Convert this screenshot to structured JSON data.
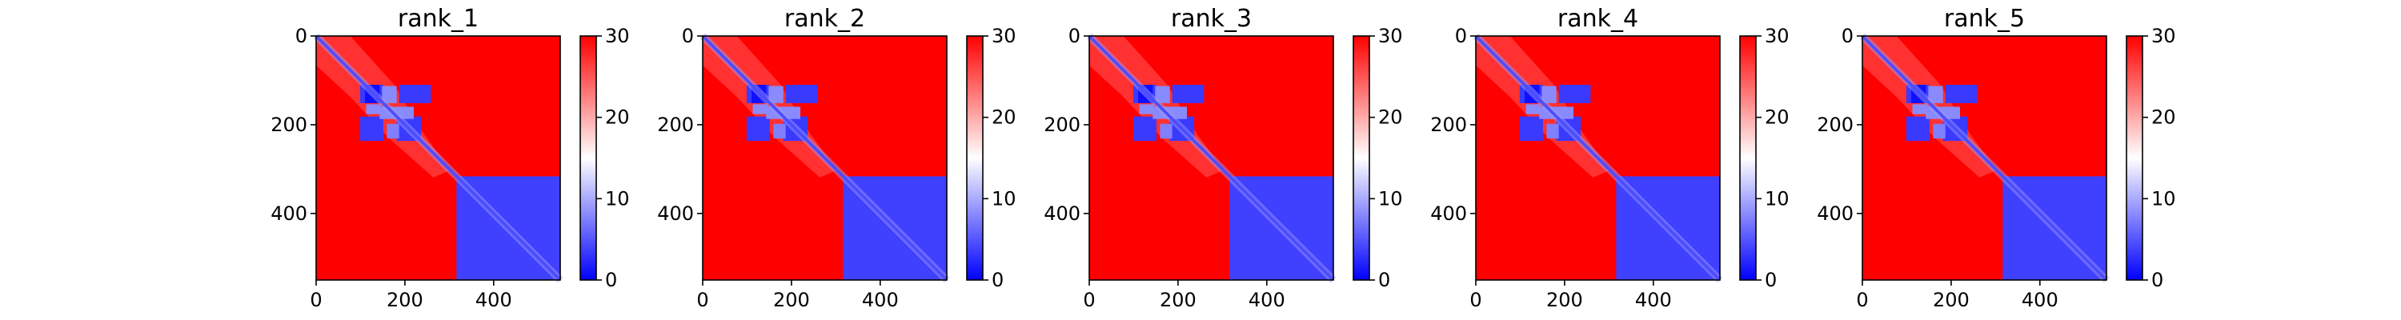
{
  "chart_data": [
    {
      "type": "heatmap",
      "title": "rank_1",
      "x_ticks": [
        "0",
        "200",
        "400"
      ],
      "y_ticks": [
        "0",
        "200",
        "400"
      ],
      "xlim": [
        0,
        550
      ],
      "ylim": [
        550,
        0
      ],
      "colorbar": {
        "ticks": [
          "0",
          "10",
          "20",
          "30"
        ],
        "range": [
          0,
          30
        ],
        "colormap": "bwr"
      }
    },
    {
      "type": "heatmap",
      "title": "rank_2",
      "x_ticks": [
        "0",
        "200",
        "400"
      ],
      "y_ticks": [
        "0",
        "200",
        "400"
      ],
      "xlim": [
        0,
        550
      ],
      "ylim": [
        550,
        0
      ],
      "colorbar": {
        "ticks": [
          "0",
          "10",
          "20",
          "30"
        ],
        "range": [
          0,
          30
        ],
        "colormap": "bwr"
      }
    },
    {
      "type": "heatmap",
      "title": "rank_3",
      "x_ticks": [
        "0",
        "200",
        "400"
      ],
      "y_ticks": [
        "0",
        "200",
        "400"
      ],
      "xlim": [
        0,
        550
      ],
      "ylim": [
        550,
        0
      ],
      "colorbar": {
        "ticks": [
          "0",
          "10",
          "20",
          "30"
        ],
        "range": [
          0,
          30
        ],
        "colormap": "bwr"
      }
    },
    {
      "type": "heatmap",
      "title": "rank_4",
      "x_ticks": [
        "0",
        "200",
        "400"
      ],
      "y_ticks": [
        "0",
        "200",
        "400"
      ],
      "xlim": [
        0,
        550
      ],
      "ylim": [
        550,
        0
      ],
      "colorbar": {
        "ticks": [
          "0",
          "10",
          "20",
          "30"
        ],
        "range": [
          0,
          30
        ],
        "colormap": "bwr"
      }
    },
    {
      "type": "heatmap",
      "title": "rank_5",
      "x_ticks": [
        "0",
        "200",
        "400"
      ],
      "y_ticks": [
        "0",
        "200",
        "400"
      ],
      "xlim": [
        0,
        550
      ],
      "ylim": [
        550,
        0
      ],
      "colorbar": {
        "ticks": [
          "0",
          "10",
          "20",
          "30"
        ],
        "range": [
          0,
          30
        ],
        "colormap": "bwr"
      }
    }
  ],
  "colors": {
    "low": "#0000ff",
    "mid": "#ffffff",
    "high": "#ff0000"
  }
}
